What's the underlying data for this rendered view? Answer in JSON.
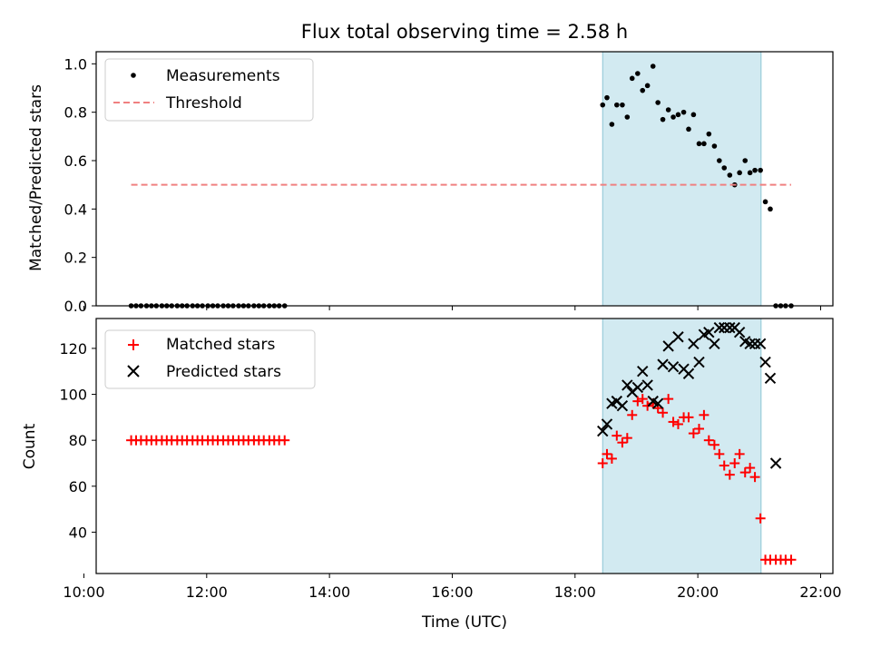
{
  "chart_data": [
    {
      "type": "scatter",
      "title": "Flux total observing time = 2.58 h",
      "ylabel": "Matched/Predicted stars",
      "xlabel": "",
      "xlim": [
        10.2,
        22.2
      ],
      "ylim": [
        0,
        1.05
      ],
      "x_ticks": [
        {
          "value": 10,
          "label": "10:00"
        },
        {
          "value": 12,
          "label": "12:00"
        },
        {
          "value": 14,
          "label": "14:00"
        },
        {
          "value": 16,
          "label": "16:00"
        },
        {
          "value": 18,
          "label": "18:00"
        },
        {
          "value": 20,
          "label": "20:00"
        },
        {
          "value": 22,
          "label": "22:00"
        }
      ],
      "y_ticks": [
        {
          "value": 0,
          "label": "0.0"
        },
        {
          "value": 0.2,
          "label": "0.2"
        },
        {
          "value": 0.4,
          "label": "0.4"
        },
        {
          "value": 0.6,
          "label": "0.6"
        },
        {
          "value": 0.8,
          "label": "0.8"
        },
        {
          "value": 1.0,
          "label": "1.0"
        }
      ],
      "highlight_span": {
        "x": [
          18.45,
          21.03
        ],
        "color": "#add8e6"
      },
      "legend_placement": "upper-left",
      "series": [
        {
          "name": "Measurements",
          "marker": "dot",
          "color": "#000000",
          "x": [
            10.77,
            10.85,
            10.93,
            11.02,
            11.1,
            11.18,
            11.27,
            11.35,
            11.43,
            11.52,
            11.6,
            11.68,
            11.77,
            11.85,
            11.93,
            12.02,
            12.1,
            12.18,
            12.27,
            12.35,
            12.43,
            12.52,
            12.6,
            12.68,
            12.77,
            12.85,
            12.93,
            13.02,
            13.1,
            13.18,
            13.27,
            18.45,
            18.52,
            18.6,
            18.68,
            18.77,
            18.85,
            18.93,
            19.02,
            19.1,
            19.18,
            19.27,
            19.35,
            19.43,
            19.52,
            19.6,
            19.68,
            19.77,
            19.85,
            19.93,
            20.02,
            20.1,
            20.18,
            20.27,
            20.35,
            20.43,
            20.52,
            20.6,
            20.68,
            20.77,
            20.85,
            20.93,
            21.02,
            21.1,
            21.18,
            21.27,
            21.35,
            21.43,
            21.52
          ],
          "y": [
            0,
            0,
            0,
            0,
            0,
            0,
            0,
            0,
            0,
            0,
            0,
            0,
            0,
            0,
            0,
            0,
            0,
            0,
            0,
            0,
            0,
            0,
            0,
            0,
            0,
            0,
            0,
            0,
            0,
            0,
            0,
            0.83,
            0.86,
            0.75,
            0.83,
            0.83,
            0.78,
            0.94,
            0.96,
            0.89,
            0.91,
            0.99,
            0.84,
            0.77,
            0.81,
            0.78,
            0.79,
            0.8,
            0.73,
            0.79,
            0.67,
            0.67,
            0.71,
            0.66,
            0.6,
            0.57,
            0.54,
            0.5,
            0.55,
            0.6,
            0.55,
            0.56,
            0.56,
            0.43,
            0.4,
            0,
            0,
            0,
            0
          ]
        },
        {
          "name": "Threshold",
          "marker": "dashed-line",
          "color": "#f08080",
          "x": [
            10.77,
            21.52
          ],
          "y": [
            0.5,
            0.5
          ]
        }
      ]
    },
    {
      "type": "scatter",
      "title": "",
      "ylabel": "Count",
      "xlabel": "Time (UTC)",
      "xlim": [
        10.2,
        22.2
      ],
      "ylim": [
        22,
        133
      ],
      "x_ticks": [
        {
          "value": 10,
          "label": "10:00"
        },
        {
          "value": 12,
          "label": "12:00"
        },
        {
          "value": 14,
          "label": "14:00"
        },
        {
          "value": 16,
          "label": "16:00"
        },
        {
          "value": 18,
          "label": "18:00"
        },
        {
          "value": 20,
          "label": "20:00"
        },
        {
          "value": 22,
          "label": "22:00"
        }
      ],
      "y_ticks": [
        {
          "value": 40,
          "label": "40"
        },
        {
          "value": 60,
          "label": "60"
        },
        {
          "value": 80,
          "label": "80"
        },
        {
          "value": 100,
          "label": "100"
        },
        {
          "value": 120,
          "label": "120"
        }
      ],
      "highlight_span": {
        "x": [
          18.45,
          21.03
        ],
        "color": "#add8e6"
      },
      "legend_placement": "upper-left",
      "series": [
        {
          "name": "Matched stars",
          "marker": "plus",
          "color": "#ff0000",
          "x": [
            10.77,
            10.85,
            10.93,
            11.02,
            11.1,
            11.18,
            11.27,
            11.35,
            11.43,
            11.52,
            11.6,
            11.68,
            11.77,
            11.85,
            11.93,
            12.02,
            12.1,
            12.18,
            12.27,
            12.35,
            12.43,
            12.52,
            12.6,
            12.68,
            12.77,
            12.85,
            12.93,
            13.02,
            13.1,
            13.18,
            13.27,
            18.45,
            18.52,
            18.6,
            18.68,
            18.77,
            18.85,
            18.93,
            19.02,
            19.1,
            19.18,
            19.27,
            19.35,
            19.43,
            19.52,
            19.6,
            19.68,
            19.77,
            19.85,
            19.93,
            20.02,
            20.1,
            20.18,
            20.27,
            20.35,
            20.43,
            20.52,
            20.6,
            20.68,
            20.77,
            20.85,
            20.93,
            21.02,
            21.1,
            21.18,
            21.27,
            21.35,
            21.43,
            21.52
          ],
          "y": [
            80,
            80,
            80,
            80,
            80,
            80,
            80,
            80,
            80,
            80,
            80,
            80,
            80,
            80,
            80,
            80,
            80,
            80,
            80,
            80,
            80,
            80,
            80,
            80,
            80,
            80,
            80,
            80,
            80,
            80,
            80,
            70,
            74,
            72,
            82,
            79,
            81,
            91,
            97,
            98,
            95,
            96,
            94,
            92,
            98,
            88,
            87,
            90,
            90,
            83,
            85,
            91,
            80,
            78,
            74,
            69,
            65,
            70,
            74,
            66,
            68,
            64,
            46,
            28,
            28,
            28,
            28,
            28,
            28
          ]
        },
        {
          "name": "Predicted stars",
          "marker": "x",
          "color": "#000000",
          "x": [
            18.45,
            18.52,
            18.6,
            18.68,
            18.77,
            18.85,
            18.93,
            19.02,
            19.1,
            19.18,
            19.27,
            19.35,
            19.43,
            19.52,
            19.6,
            19.68,
            19.77,
            19.85,
            19.93,
            20.02,
            20.1,
            20.18,
            20.27,
            20.35,
            20.43,
            20.52,
            20.6,
            20.68,
            20.77,
            20.85,
            20.93,
            21.02,
            21.1,
            21.18,
            21.27
          ],
          "y": [
            84,
            87,
            96,
            97,
            95,
            104,
            101,
            103,
            110,
            104,
            97,
            96,
            113,
            121,
            112,
            125,
            111,
            109,
            122,
            114,
            126,
            127,
            122,
            129,
            129,
            129,
            129,
            127,
            123,
            122,
            122,
            122,
            114,
            107,
            70
          ]
        }
      ]
    }
  ]
}
